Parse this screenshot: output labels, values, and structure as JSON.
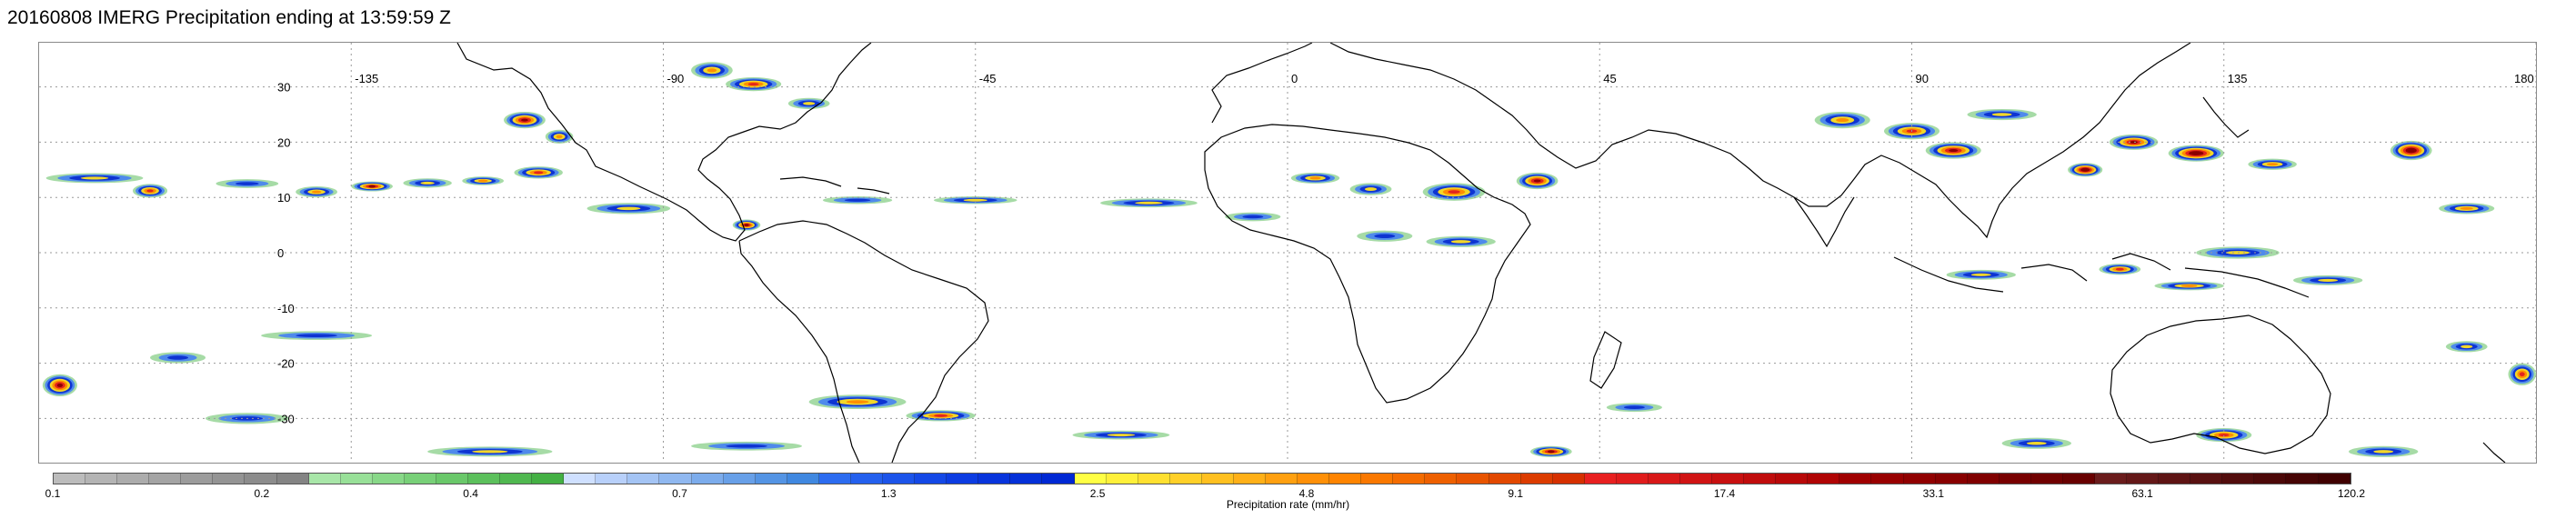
{
  "title": "20160808 IMERG Precipitation ending at 13:59:59 Z",
  "map": {
    "projection": "cylindrical-equidistant",
    "lon_range": [
      -180,
      180
    ],
    "lat_range": [
      -38,
      38
    ],
    "gridlines": "dotted",
    "lon_ticks": [
      "-135",
      "-90",
      "-45",
      "0",
      "45",
      "90",
      "135",
      "180"
    ],
    "lat_ticks": [
      "30",
      "20",
      "10",
      "0",
      "-10",
      "-20",
      "-30"
    ],
    "coastline_color": "#000000",
    "precip_cells": [
      {
        "lon": -172,
        "lat": 13.5,
        "w": 14,
        "h": 1.8,
        "level": 3
      },
      {
        "lon": -164,
        "lat": 11.2,
        "w": 5,
        "h": 2.5,
        "level": 5
      },
      {
        "lon": -150,
        "lat": 12.5,
        "w": 9,
        "h": 1.6,
        "level": 2
      },
      {
        "lon": -140,
        "lat": 11.0,
        "w": 6,
        "h": 2.0,
        "level": 4
      },
      {
        "lon": -132,
        "lat": 12.0,
        "w": 6,
        "h": 1.8,
        "level": 6
      },
      {
        "lon": -124,
        "lat": 12.6,
        "w": 7,
        "h": 1.7,
        "level": 3
      },
      {
        "lon": -116,
        "lat": 13.0,
        "w": 6,
        "h": 1.6,
        "level": 4
      },
      {
        "lon": -108,
        "lat": 14.5,
        "w": 7,
        "h": 2.2,
        "level": 5
      },
      {
        "lon": -110,
        "lat": 24.0,
        "w": 6,
        "h": 3.0,
        "level": 6
      },
      {
        "lon": -105,
        "lat": 21.0,
        "w": 4,
        "h": 2.5,
        "level": 4
      },
      {
        "lon": -83,
        "lat": 33.0,
        "w": 6,
        "h": 3.0,
        "level": 4
      },
      {
        "lon": -77,
        "lat": 30.5,
        "w": 8,
        "h": 2.5,
        "level": 5
      },
      {
        "lon": -69,
        "lat": 27.0,
        "w": 6,
        "h": 2.0,
        "level": 3
      },
      {
        "lon": -95,
        "lat": 8.0,
        "w": 12,
        "h": 2.0,
        "level": 3
      },
      {
        "lon": -78,
        "lat": 5.0,
        "w": 4,
        "h": 2.0,
        "level": 6
      },
      {
        "lon": -62,
        "lat": 9.5,
        "w": 10,
        "h": 1.4,
        "level": 2
      },
      {
        "lon": -45,
        "lat": 9.5,
        "w": 12,
        "h": 1.4,
        "level": 3
      },
      {
        "lon": -20,
        "lat": 9.0,
        "w": 14,
        "h": 1.6,
        "level": 3
      },
      {
        "lon": -5,
        "lat": 6.5,
        "w": 8,
        "h": 1.6,
        "level": 2
      },
      {
        "lon": 4,
        "lat": 13.5,
        "w": 7,
        "h": 2.0,
        "level": 4
      },
      {
        "lon": 12,
        "lat": 11.5,
        "w": 6,
        "h": 2.2,
        "level": 3
      },
      {
        "lon": 24,
        "lat": 11.0,
        "w": 9,
        "h": 3.2,
        "level": 5
      },
      {
        "lon": 36,
        "lat": 13.0,
        "w": 6,
        "h": 3.0,
        "level": 6
      },
      {
        "lon": 14,
        "lat": 3.0,
        "w": 8,
        "h": 2.0,
        "level": 2
      },
      {
        "lon": 25,
        "lat": 2.0,
        "w": 10,
        "h": 2.0,
        "level": 3
      },
      {
        "lon": 80,
        "lat": 24.0,
        "w": 8,
        "h": 3.0,
        "level": 4
      },
      {
        "lon": 90,
        "lat": 22.0,
        "w": 8,
        "h": 3.0,
        "level": 5
      },
      {
        "lon": 96,
        "lat": 18.5,
        "w": 8,
        "h": 3.0,
        "level": 6
      },
      {
        "lon": 103,
        "lat": 25.0,
        "w": 10,
        "h": 2.0,
        "level": 3
      },
      {
        "lon": 115,
        "lat": 15.0,
        "w": 5,
        "h": 2.5,
        "level": 7
      },
      {
        "lon": 122,
        "lat": 20.0,
        "w": 7,
        "h": 2.8,
        "level": 6
      },
      {
        "lon": 131,
        "lat": 18.0,
        "w": 8,
        "h": 3.0,
        "level": 7
      },
      {
        "lon": 142,
        "lat": 16.0,
        "w": 7,
        "h": 2.0,
        "level": 4
      },
      {
        "lon": 162,
        "lat": 18.5,
        "w": 6,
        "h": 3.5,
        "level": 7
      },
      {
        "lon": 170,
        "lat": 8.0,
        "w": 8,
        "h": 2.0,
        "level": 4
      },
      {
        "lon": 137,
        "lat": 0.0,
        "w": 12,
        "h": 2.2,
        "level": 3
      },
      {
        "lon": 120,
        "lat": -3.0,
        "w": 6,
        "h": 2.0,
        "level": 5
      },
      {
        "lon": 100,
        "lat": -4.0,
        "w": 10,
        "h": 1.8,
        "level": 3
      },
      {
        "lon": 130,
        "lat": -6.0,
        "w": 10,
        "h": 1.6,
        "level": 4
      },
      {
        "lon": 150,
        "lat": -5.0,
        "w": 10,
        "h": 1.8,
        "level": 3
      },
      {
        "lon": 178,
        "lat": -22.0,
        "w": 4,
        "h": 4.0,
        "level": 5
      },
      {
        "lon": 170,
        "lat": -17.0,
        "w": 6,
        "h": 2.0,
        "level": 3
      },
      {
        "lon": -62,
        "lat": -27.0,
        "w": 14,
        "h": 2.6,
        "level": 4
      },
      {
        "lon": -50,
        "lat": -29.5,
        "w": 10,
        "h": 2.0,
        "level": 5
      },
      {
        "lon": -24,
        "lat": -33.0,
        "w": 14,
        "h": 1.6,
        "level": 3
      },
      {
        "lon": -78,
        "lat": -35.0,
        "w": 16,
        "h": 1.6,
        "level": 2
      },
      {
        "lon": -115,
        "lat": -36.0,
        "w": 18,
        "h": 1.8,
        "level": 3
      },
      {
        "lon": -177,
        "lat": -24.0,
        "w": 5,
        "h": 4.0,
        "level": 6
      },
      {
        "lon": -160,
        "lat": -19.0,
        "w": 8,
        "h": 2.0,
        "level": 2
      },
      {
        "lon": -140,
        "lat": -15.0,
        "w": 16,
        "h": 1.6,
        "level": 2
      },
      {
        "lon": -150,
        "lat": -30.0,
        "w": 12,
        "h": 2.0,
        "level": 2
      },
      {
        "lon": 38,
        "lat": -36.0,
        "w": 6,
        "h": 2.0,
        "level": 6
      },
      {
        "lon": 50,
        "lat": -28.0,
        "w": 8,
        "h": 1.6,
        "level": 2
      },
      {
        "lon": 108,
        "lat": -34.5,
        "w": 10,
        "h": 2.0,
        "level": 3
      },
      {
        "lon": 135,
        "lat": -33.0,
        "w": 8,
        "h": 2.5,
        "level": 5
      },
      {
        "lon": 158,
        "lat": -36.0,
        "w": 10,
        "h": 2.0,
        "level": 3
      }
    ]
  },
  "colorbar": {
    "caption": "Precipitation rate (mm/hr)",
    "tick_labels": [
      "0.1",
      "0.2",
      "0.4",
      "0.7",
      "1.3",
      "2.5",
      "4.8",
      "9.1",
      "17.4",
      "33.1",
      "63.1",
      "120.2"
    ],
    "colors": [
      "#bcbcbc",
      "#b4b4b4",
      "#acacac",
      "#a4a4a4",
      "#9c9c9c",
      "#949494",
      "#8c8c8c",
      "#848484",
      "#a8e6a8",
      "#98e098",
      "#88d888",
      "#78d078",
      "#6ac86a",
      "#5cc05c",
      "#50b850",
      "#44b044",
      "#cfe0ff",
      "#b8d0fa",
      "#a4c4f4",
      "#90b8f0",
      "#7cacec",
      "#68a0e8",
      "#5494e4",
      "#4088e0",
      "#2c6cf0",
      "#2460ee",
      "#1c54ea",
      "#1448e6",
      "#0c3ce2",
      "#0834dc",
      "#0430d8",
      "#0028d4",
      "#ffff44",
      "#fff03a",
      "#ffe030",
      "#ffd028",
      "#ffc020",
      "#ffb018",
      "#ffa010",
      "#ff9008",
      "#ff8400",
      "#fa7800",
      "#f46c00",
      "#ee6000",
      "#e85400",
      "#e24800",
      "#dc3c00",
      "#d63000",
      "#e82020",
      "#e01c1c",
      "#d81818",
      "#d01414",
      "#c81010",
      "#c00c0c",
      "#b80808",
      "#b00404",
      "#a00000",
      "#980000",
      "#900000",
      "#880000",
      "#800000",
      "#780000",
      "#700000",
      "#680000",
      "#6a1c1c",
      "#641818",
      "#5e1414",
      "#581010",
      "#520c0c",
      "#4c0808",
      "#460404",
      "#400000"
    ]
  }
}
